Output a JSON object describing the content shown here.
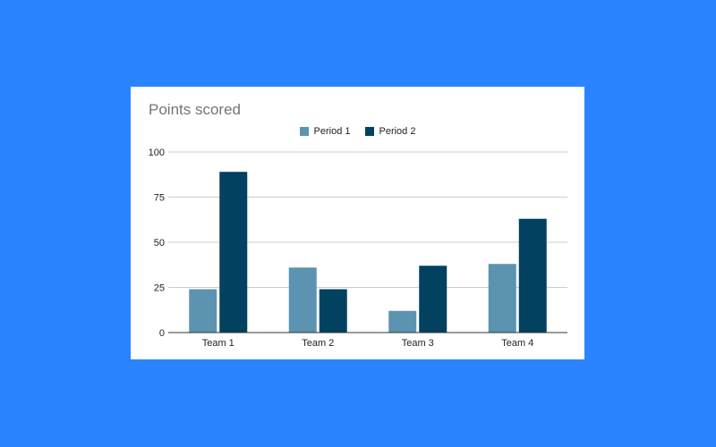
{
  "colors": {
    "background": "#2a84ff",
    "card": "#ffffff",
    "period_1": "#5b93b0",
    "period_2": "#02415f",
    "gridline": "#cccccc",
    "axis": "#333333"
  },
  "chart_data": {
    "type": "bar",
    "title": "Points scored",
    "xlabel": "",
    "ylabel": "",
    "categories": [
      "Team 1",
      "Team 2",
      "Team 3",
      "Team 4"
    ],
    "series": [
      {
        "name": "Period 1",
        "values": [
          24,
          36,
          12,
          38
        ]
      },
      {
        "name": "Period 2",
        "values": [
          89,
          24,
          37,
          63
        ]
      }
    ],
    "ylim": [
      0,
      100
    ],
    "yticks": [
      0,
      25,
      50,
      75,
      100
    ],
    "grid": true,
    "legend_position": "top"
  }
}
